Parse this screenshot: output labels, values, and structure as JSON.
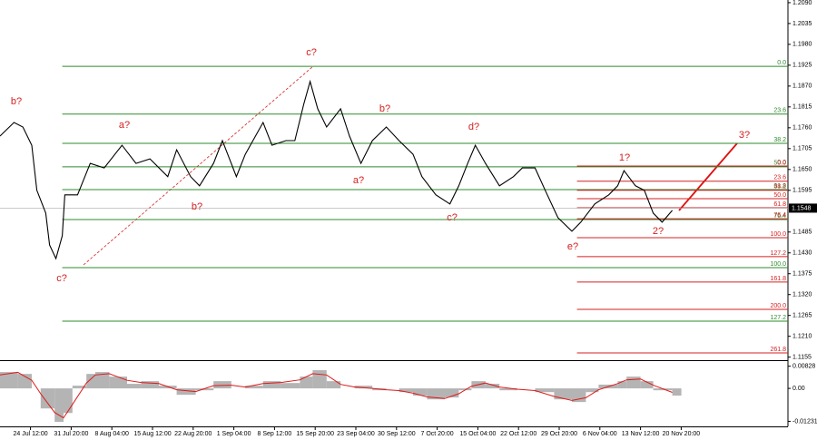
{
  "chart_data": [
    {
      "type": "line",
      "color": "#000000",
      "x": [
        0,
        11,
        18,
        25,
        29,
        36,
        39,
        44,
        49,
        51,
        61,
        71,
        82,
        96,
        107,
        118,
        132,
        139,
        150,
        157,
        168,
        175,
        186,
        193,
        207,
        214,
        225,
        232,
        239,
        244,
        250,
        257,
        268,
        275,
        284,
        293,
        304,
        314,
        325,
        332,
        343,
        354,
        361,
        368,
        374,
        382,
        393,
        404,
        411,
        421,
        429,
        439,
        450,
        457,
        468,
        479,
        486,
        491,
        500,
        507,
        514,
        521,
        529
      ],
      "values": [
        1.1738,
        1.1774,
        1.1762,
        1.1714,
        1.1595,
        1.1535,
        1.1451,
        1.1415,
        1.1475,
        1.1583,
        1.1583,
        1.1666,
        1.1654,
        1.1714,
        1.1666,
        1.1678,
        1.1631,
        1.1702,
        1.1631,
        1.1607,
        1.1666,
        1.1726,
        1.1631,
        1.169,
        1.1774,
        1.1714,
        1.1726,
        1.1726,
        1.1822,
        1.1882,
        1.181,
        1.1762,
        1.181,
        1.1738,
        1.1666,
        1.1726,
        1.1762,
        1.1726,
        1.169,
        1.1631,
        1.1583,
        1.1559,
        1.1607,
        1.1666,
        1.1714,
        1.1666,
        1.1607,
        1.1631,
        1.1654,
        1.1654,
        1.1595,
        1.1523,
        1.1487,
        1.1511,
        1.1559,
        1.1583,
        1.1607,
        1.1647,
        1.1607,
        1.1595,
        1.1535,
        1.1511,
        1.1542
      ],
      "xlim": [
        0,
        620
      ],
      "xticks": [
        {
          "value": 24,
          "label": "24 Jul 12:00"
        },
        {
          "value": 56,
          "label": "31 Jul 20:00"
        },
        {
          "value": 88,
          "label": "8 Aug 04:00"
        },
        {
          "value": 120,
          "label": "15 Aug 12:00"
        },
        {
          "value": 152,
          "label": "22 Aug 20:00"
        },
        {
          "value": 184,
          "label": "1 Sep 04:00"
        },
        {
          "value": 216,
          "label": "8 Sep 12:00"
        },
        {
          "value": 248,
          "label": "15 Sep 20:00"
        },
        {
          "value": 280,
          "label": "23 Sep 04:00"
        },
        {
          "value": 312,
          "label": "30 Sep 12:00"
        },
        {
          "value": 344,
          "label": "7 Oct 20:00"
        },
        {
          "value": 376,
          "label": "15 Oct 04:00"
        },
        {
          "value": 408,
          "label": "22 Oct 12:00"
        },
        {
          "value": 440,
          "label": "29 Oct 20:00"
        },
        {
          "value": 472,
          "label": "6 Nov 04:00"
        },
        {
          "value": 504,
          "label": "13 Nov 12:00"
        },
        {
          "value": 536,
          "label": "20 Nov 20:00"
        }
      ],
      "ylim": [
        1.1147,
        1.2097
      ],
      "yticks": [
        {
          "value": 1.209,
          "label": "1.2090"
        },
        {
          "value": 1.2035,
          "label": "1.2035"
        },
        {
          "value": 1.198,
          "label": "1.1980"
        },
        {
          "value": 1.1925,
          "label": "1.1925"
        },
        {
          "value": 1.187,
          "label": "1.1870"
        },
        {
          "value": 1.1815,
          "label": "1.1815"
        },
        {
          "value": 1.176,
          "label": "1.1760"
        },
        {
          "value": 1.1705,
          "label": "1.1705"
        },
        {
          "value": 1.165,
          "label": "1.1650"
        },
        {
          "value": 1.1595,
          "label": "1.1595"
        },
        {
          "value": 1.1485,
          "label": "1.1485"
        },
        {
          "value": 1.143,
          "label": "1.1430"
        },
        {
          "value": 1.1375,
          "label": "1.1375"
        },
        {
          "value": 1.132,
          "label": "1.1320"
        },
        {
          "value": 1.1265,
          "label": "1.1265"
        },
        {
          "value": 1.121,
          "label": "1.1210"
        },
        {
          "value": 1.1155,
          "label": "1.1155"
        }
      ],
      "last_price": 1.1548,
      "fib_levels": [
        {
          "color": "#2e8b2e",
          "start": 49,
          "levels": [
            {
              "value": 1.1922,
              "label": "0.0"
            },
            {
              "value": 1.1796,
              "label": "23.6"
            },
            {
              "value": 1.1719,
              "label": "38.2"
            },
            {
              "value": 1.1657,
              "label": "50.0"
            },
            {
              "value": 1.1597,
              "label": "61.8"
            },
            {
              "value": 1.1518,
              "label": "76.4"
            },
            {
              "value": 1.1391,
              "label": "100.0"
            },
            {
              "value": 1.125,
              "label": "127.2"
            }
          ]
        },
        {
          "color": "#d42020",
          "start": 454,
          "levels": [
            {
              "value": 1.1659,
              "label": "0.0"
            },
            {
              "value": 1.1619,
              "label": "23.6"
            },
            {
              "value": 1.1595,
              "label": "38.2"
            },
            {
              "value": 1.1573,
              "label": "50.0"
            },
            {
              "value": 1.1549,
              "label": "61.8"
            },
            {
              "value": 1.152,
              "label": "76.4"
            },
            {
              "value": 1.147,
              "label": "100.0"
            },
            {
              "value": 1.142,
              "label": "127.2"
            },
            {
              "value": 1.1353,
              "label": "161.8"
            },
            {
              "value": 1.1281,
              "label": "200.0"
            },
            {
              "value": 1.1166,
              "label": "261.8"
            }
          ]
        }
      ],
      "annotations": [
        "b?",
        "c?",
        "a?",
        "b?",
        "c?",
        "a?",
        "b?",
        "c?",
        "d?",
        "e?",
        "1?",
        "2?",
        "3?"
      ],
      "annotation_color": "#d42020"
    },
    {
      "type": "bar",
      "color": "#b4b4b4",
      "x": [
        0,
        14,
        25,
        32,
        43,
        50,
        57,
        68,
        75,
        86,
        100,
        111,
        125,
        139,
        154,
        168,
        182,
        193,
        207,
        221,
        236,
        246,
        257,
        268,
        279,
        293,
        304,
        314,
        325,
        336,
        350,
        361,
        371,
        382,
        393,
        407,
        421,
        436,
        450,
        461,
        471,
        486,
        493,
        504,
        514,
        529
      ],
      "values": [
        0.0061,
        0.0054,
        0,
        -0.0075,
        -0.0125,
        -0.0092,
        0.001,
        0.0054,
        0.0061,
        0.0044,
        0.0017,
        0.0027,
        0.001,
        -0.0024,
        -0.0007,
        0.0027,
        0,
        0.001,
        0.0027,
        0.002,
        0.0044,
        0.0068,
        0.0027,
        0,
        0.001,
        -0.0007,
        0,
        -0.0014,
        -0.0027,
        -0.0041,
        -0.0034,
        -0.0007,
        0.0027,
        0.0017,
        -0.0007,
        0,
        -0.0014,
        -0.0041,
        -0.0051,
        -0.0014,
        0.0014,
        0.0027,
        0.0044,
        0.0027,
        -0.0007,
        -0.0027
      ],
      "signal": {
        "color": "#e01818",
        "values": [
          0.005,
          0.006,
          0.003,
          -0.002,
          -0.009,
          -0.011,
          -0.006,
          0.002,
          0.005,
          0.0055,
          0.003,
          0.0022,
          0.0018,
          -0.0005,
          -0.0012,
          0.001,
          0.0012,
          0.0005,
          0.0018,
          0.0022,
          0.0032,
          0.0055,
          0.005,
          0.0015,
          0.0005,
          0,
          -0.0005,
          -0.0008,
          -0.0018,
          -0.0032,
          -0.0038,
          -0.002,
          0.0008,
          0.002,
          0.0005,
          -0.0003,
          -0.0008,
          -0.003,
          -0.0045,
          -0.0035,
          -0.0005,
          0.0018,
          0.0032,
          0.0035,
          0.0012,
          -0.0015
        ]
      },
      "ylim": [
        -0.0142,
        0.0102
      ],
      "yticks": [
        0.00828,
        {
          "value": 0,
          "label": "0.00"
        },
        -0.01231
      ]
    }
  ]
}
